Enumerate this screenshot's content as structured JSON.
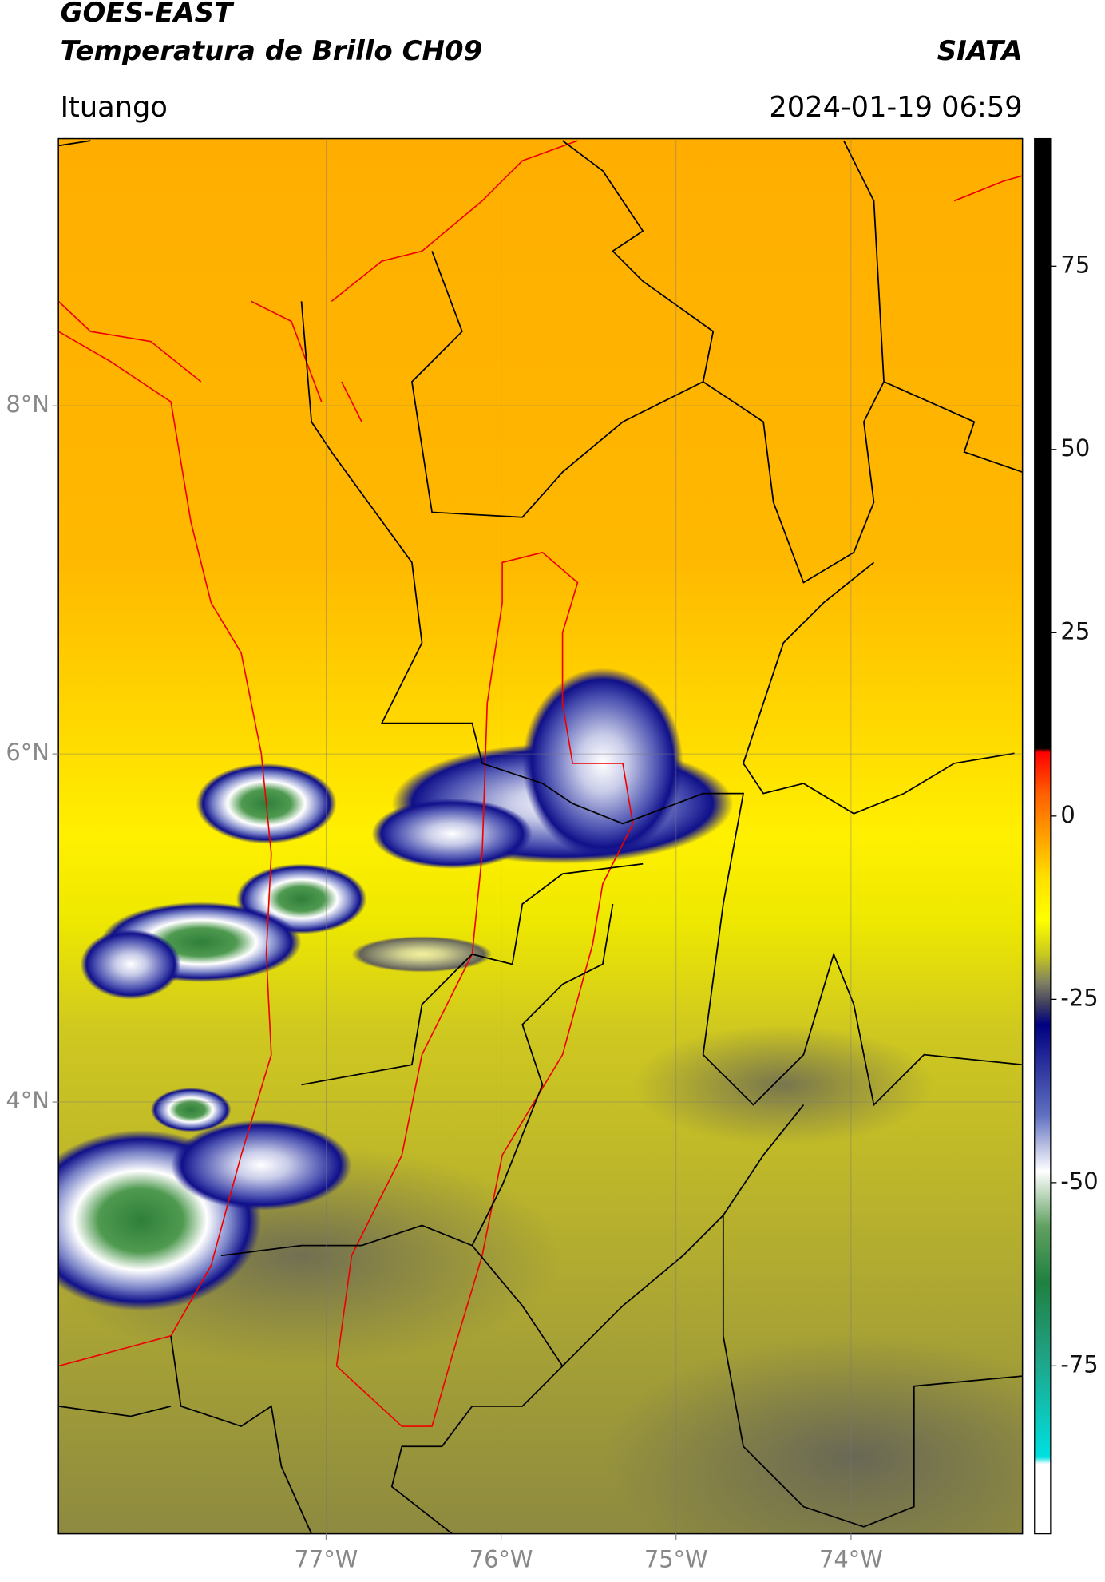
{
  "header": {
    "title": "GOES-EAST",
    "subtitle": "Temperatura de Brillo CH09",
    "source": "SIATA",
    "location": "Ituango",
    "datetime": "2024-01-19 06:59"
  },
  "map": {
    "xlim": [
      -78.53,
      -73.02
    ],
    "ylim": [
      1.52,
      9.535
    ],
    "lon_ticks": [
      {
        "value": -77,
        "label": "77°W"
      },
      {
        "value": -76,
        "label": "76°W"
      },
      {
        "value": -75,
        "label": "75°W"
      },
      {
        "value": -74,
        "label": "74°W"
      }
    ],
    "lat_ticks": [
      {
        "value": 8,
        "label": "8°N"
      },
      {
        "value": 6,
        "label": "6°N"
      },
      {
        "value": 4,
        "label": "4°N"
      }
    ]
  },
  "colorbar": {
    "lim": [
      -97.9,
      92.4
    ],
    "ticks": [
      75,
      50,
      25,
      0,
      -25,
      -50,
      -75
    ]
  }
}
